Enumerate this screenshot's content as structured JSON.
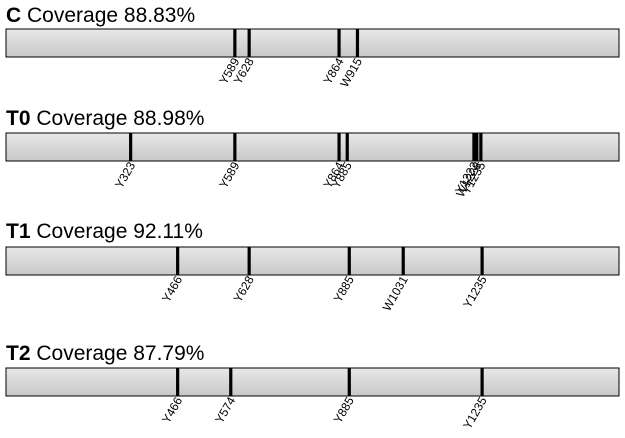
{
  "style": {
    "bar_fill_top": "#e8e8e8",
    "bar_fill_bottom": "#c8c8c8",
    "marker_color": "#000000"
  },
  "scale": {
    "min_position": 0,
    "max_position": 1500
  },
  "tracks": [
    {
      "sample": "C",
      "coverage_text": "Coverage 88.83%",
      "sites": [
        {
          "label": "Y589",
          "position": 560
        },
        {
          "label": "Y628",
          "position": 595
        },
        {
          "label": "Y864",
          "position": 815
        },
        {
          "label": "W915",
          "position": 860
        }
      ]
    },
    {
      "sample": "T0",
      "coverage_text": "Coverage 88.98%",
      "sites": [
        {
          "label": "Y323",
          "position": 305
        },
        {
          "label": "Y589",
          "position": 560
        },
        {
          "label": "Y864",
          "position": 815
        },
        {
          "label": "Y885",
          "position": 835
        },
        {
          "label": "Y1222",
          "position": 1145
        },
        {
          "label": "W1228",
          "position": 1152
        },
        {
          "label": "Y1235",
          "position": 1162
        }
      ]
    },
    {
      "sample": "T1",
      "coverage_text": "Coverage 92.11%",
      "sites": [
        {
          "label": "Y466",
          "position": 420
        },
        {
          "label": "Y628",
          "position": 595
        },
        {
          "label": "Y885",
          "position": 840
        },
        {
          "label": "W1031",
          "position": 972
        },
        {
          "label": "Y1235",
          "position": 1165
        }
      ]
    },
    {
      "sample": "T2",
      "coverage_text": "Coverage 87.79%",
      "sites": [
        {
          "label": "Y466",
          "position": 420
        },
        {
          "label": "Y574",
          "position": 550
        },
        {
          "label": "Y885",
          "position": 840
        },
        {
          "label": "Y1235",
          "position": 1165
        }
      ]
    }
  ]
}
